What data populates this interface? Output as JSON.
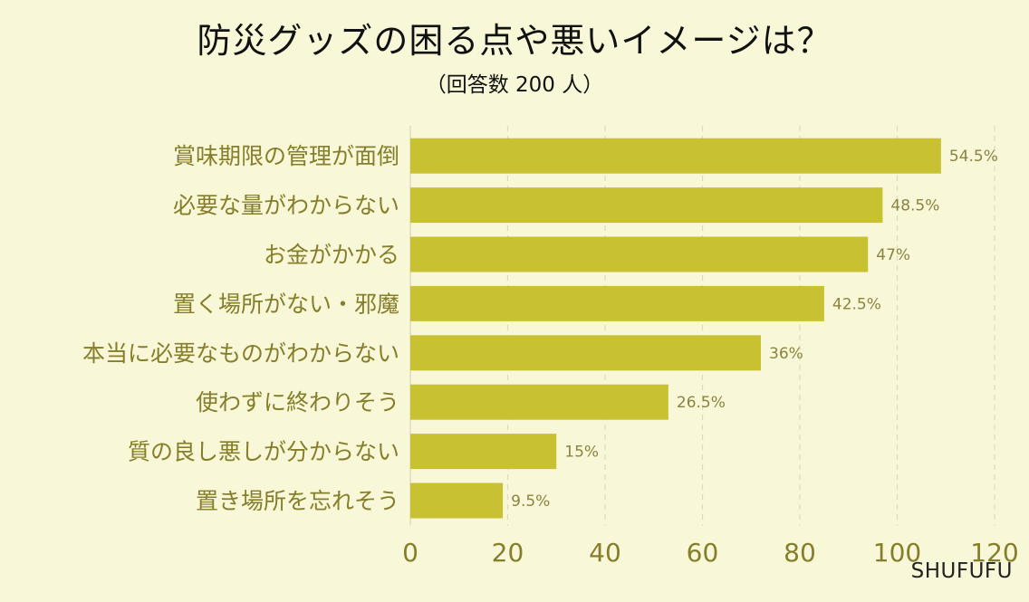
{
  "header": {
    "title": "防災グッズの困る点や悪いイメージは？",
    "subtitle": "（回答数 200 人）"
  },
  "credit": "SHUFUFU",
  "colors": {
    "background": "#f8f7d7",
    "bar": "#c8c232",
    "label": "#857e2a"
  },
  "chart_data": {
    "type": "bar",
    "orientation": "horizontal",
    "categories": [
      "賞味期限の管理が面倒",
      "必要な量がわからない",
      "お金がかかる",
      "置く場所がない・邪魔",
      "本当に必要なものがわからない",
      "使わずに終わりそう",
      "質の良し悪しが分からない",
      "置き場所を忘れそう"
    ],
    "values": [
      109,
      97,
      94,
      85,
      72,
      53,
      30,
      19
    ],
    "data_labels": [
      "54.5%",
      "48.5%",
      "47%",
      "42.5%",
      "36%",
      "26.5%",
      "15%",
      "9.5%"
    ],
    "xlim": [
      0,
      120
    ],
    "xticks": [
      "0",
      "20",
      "40",
      "60",
      "80",
      "100",
      "120"
    ],
    "grid": "vertical dashed"
  }
}
